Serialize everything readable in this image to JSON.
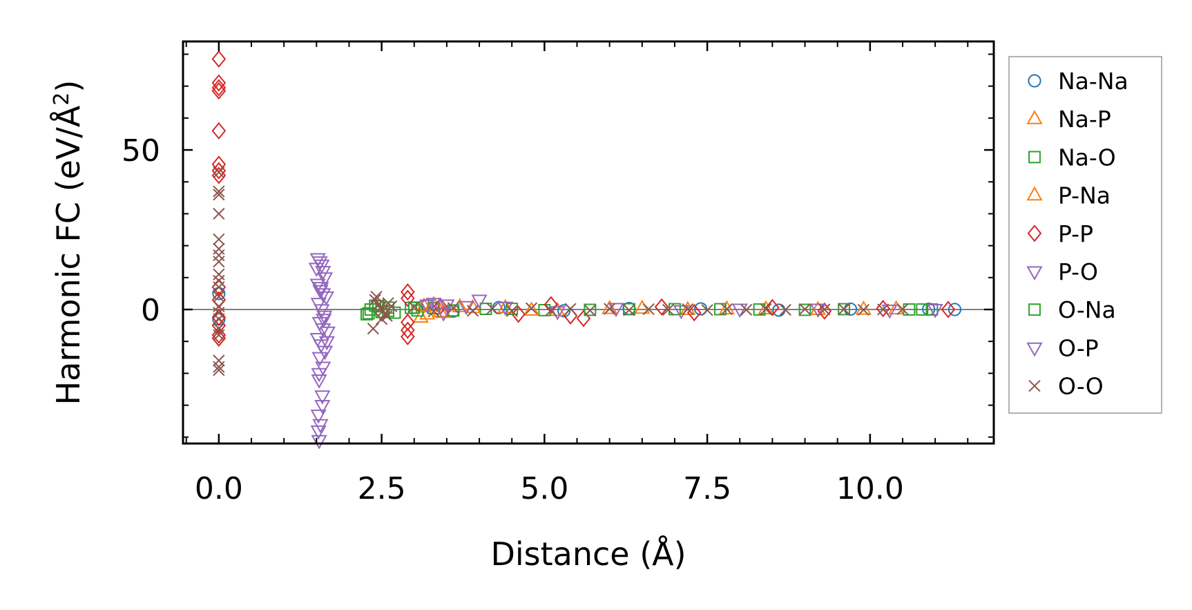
{
  "chart_data": {
    "type": "scatter",
    "title": "",
    "xlabel": "Distance (Å)",
    "ylabel_main": "Harmonic FC (eV/Å",
    "ylabel_sup": "2",
    "ylabel_close": ")",
    "xlim": [
      -0.55,
      11.9
    ],
    "ylim": [
      -42,
      84
    ],
    "xticks": [
      0.0,
      2.5,
      5.0,
      7.5,
      10.0
    ],
    "xtick_labels": [
      "0.0",
      "2.5",
      "5.0",
      "7.5",
      "10.0"
    ],
    "yticks": [
      0,
      50
    ],
    "ytick_labels": [
      "0",
      "50"
    ],
    "zero_line": true,
    "legend_position": "right",
    "series": [
      {
        "name": "Na-Na",
        "marker": "circle",
        "color": "#1f77b4",
        "x": [
          0.0,
          0.0,
          3.2,
          3.6,
          4.3,
          5.3,
          6.3,
          7.4,
          8.6,
          9.7,
          10.9,
          11.3
        ],
        "y": [
          5,
          -3,
          1.2,
          -0.5,
          0.6,
          -0.4,
          0.3,
          0.2,
          -0.2,
          0.1,
          0.1,
          0.0
        ]
      },
      {
        "name": "Na-P",
        "marker": "triangle-up",
        "color": "#ff7f0e",
        "x": [
          3.1,
          3.2,
          3.3,
          3.45,
          3.7,
          4.4,
          5.2,
          6.5,
          7.8,
          9.2,
          10.4
        ],
        "y": [
          -2.5,
          -1.5,
          1.5,
          -1.0,
          0.8,
          0.5,
          -0.4,
          0.3,
          0.1,
          -0.1,
          0.1
        ]
      },
      {
        "name": "Na-O",
        "marker": "square",
        "color": "#2ca02c",
        "x": [
          2.27,
          2.33,
          2.4,
          2.5,
          2.6,
          2.7,
          2.95,
          3.05,
          3.3,
          4.1,
          5.0,
          6.3,
          7.7,
          9.0,
          10.6,
          10.95
        ],
        "y": [
          -1.5,
          0.0,
          1.2,
          -0.8,
          0.6,
          -1.0,
          0.5,
          -0.3,
          0.4,
          0.2,
          -0.2,
          0.1,
          0.1,
          -0.1,
          0.0,
          0.0
        ]
      },
      {
        "name": "P-Na",
        "marker": "triangle-up",
        "color": "#ff7f0e",
        "x": [
          3.15,
          3.4,
          3.9,
          4.8,
          6.0,
          7.2,
          8.4,
          9.9
        ],
        "y": [
          1.0,
          -0.8,
          0.5,
          -0.3,
          0.2,
          -0.1,
          0.1,
          0.0
        ]
      },
      {
        "name": "P-P",
        "marker": "diamond",
        "color": "#d62728",
        "x": [
          0.0,
          0.0,
          0.0,
          0.0,
          0.0,
          0.0,
          0.0,
          0.0,
          0.0,
          0.0,
          0.0,
          0.0,
          0.0,
          0.0,
          2.9,
          2.9,
          2.9,
          2.9,
          2.9,
          3.4,
          4.6,
          5.1,
          5.4,
          5.6,
          6.8,
          7.3,
          8.5,
          9.3,
          10.2,
          11.2
        ],
        "y": [
          78.5,
          71,
          69.5,
          68.5,
          56,
          45.5,
          43.5,
          42,
          7,
          3,
          -2.5,
          -5,
          -8,
          -9,
          5.5,
          3.5,
          -4,
          -6.5,
          -8.5,
          1.0,
          -1.5,
          1.5,
          -2.0,
          -2.8,
          0.8,
          -1.0,
          0.6,
          -0.5,
          0.3,
          0.0
        ]
      },
      {
        "name": "P-O",
        "marker": "triangle-down",
        "color": "#9467bd",
        "x": [
          1.52,
          1.55,
          1.58,
          1.6,
          1.63,
          1.52,
          1.56,
          1.6,
          1.65,
          1.53,
          1.58,
          1.62,
          1.55,
          1.6,
          1.67,
          1.52,
          1.57,
          1.63,
          1.55,
          1.6,
          1.54,
          1.59,
          1.53,
          1.56,
          1.53,
          1.54,
          3.3,
          3.5,
          4.0
        ],
        "y": [
          16,
          15,
          14,
          12,
          10,
          8,
          6,
          5,
          4,
          2,
          0,
          -2,
          -4,
          -6,
          -7,
          -9,
          -11,
          -13,
          -15,
          -18,
          -22,
          -27,
          -33,
          -36,
          -38,
          -41,
          2.0,
          1.5,
          3.0
        ]
      },
      {
        "name": "O-Na",
        "marker": "square",
        "color": "#2ca02c",
        "x": [
          2.3,
          2.45,
          2.6,
          3.0,
          3.6,
          4.5,
          5.7,
          7.0,
          8.3,
          9.6,
          10.8
        ],
        "y": [
          -1.2,
          1.0,
          -0.5,
          0.6,
          -0.3,
          0.2,
          -0.1,
          0.1,
          0.0,
          0.1,
          0.0
        ]
      },
      {
        "name": "O-P",
        "marker": "triangle-down",
        "color": "#9467bd",
        "x": [
          1.5,
          1.57,
          1.61,
          1.66,
          1.54,
          1.59,
          3.2,
          3.45,
          3.8,
          4.4,
          5.2,
          6.1,
          7.1,
          8.0,
          9.2,
          10.3,
          11.0
        ],
        "y": [
          13,
          7,
          -3,
          -10,
          -20,
          -30,
          1.5,
          -1.0,
          1.0,
          0.8,
          -0.6,
          0.4,
          -0.3,
          0.2,
          0.2,
          -0.1,
          0.1
        ]
      },
      {
        "name": "O-O",
        "marker": "x",
        "color": "#8c564b",
        "x": [
          0.0,
          0.0,
          0.0,
          0.0,
          0.0,
          0.0,
          0.0,
          0.0,
          0.0,
          0.0,
          0.0,
          0.0,
          0.0,
          0.0,
          0.0,
          0.0,
          0.0,
          0.0,
          0.0,
          0.0,
          2.4,
          2.45,
          2.48,
          2.52,
          2.55,
          2.6,
          2.42,
          2.5,
          2.58,
          2.65,
          2.37,
          3.0,
          3.3,
          3.6,
          3.9,
          4.2,
          4.5,
          4.8,
          5.1,
          5.4,
          5.7,
          6.0,
          6.3,
          6.6,
          6.9,
          7.2,
          7.5,
          7.8,
          8.1,
          8.4,
          8.7,
          9.0,
          9.3,
          9.6,
          9.9,
          10.2,
          10.5
        ],
        "y": [
          43,
          37,
          36,
          30,
          22,
          19,
          17,
          15,
          11,
          9,
          7,
          4,
          1,
          -1,
          -3,
          -6,
          -8,
          -16,
          -18,
          -19,
          3,
          1.5,
          0.5,
          -0.5,
          -1.5,
          2,
          4,
          -3,
          -2,
          1,
          -6,
          0.8,
          -0.6,
          0.5,
          -0.4,
          0.3,
          -0.5,
          0.4,
          -0.3,
          0.2,
          -0.3,
          0.2,
          -0.2,
          0.1,
          -0.1,
          0.1,
          -0.2,
          0.1,
          -0.1,
          0.1,
          -0.1,
          0.1,
          0.0,
          0.1,
          -0.1,
          0.0,
          0.1
        ]
      }
    ]
  }
}
